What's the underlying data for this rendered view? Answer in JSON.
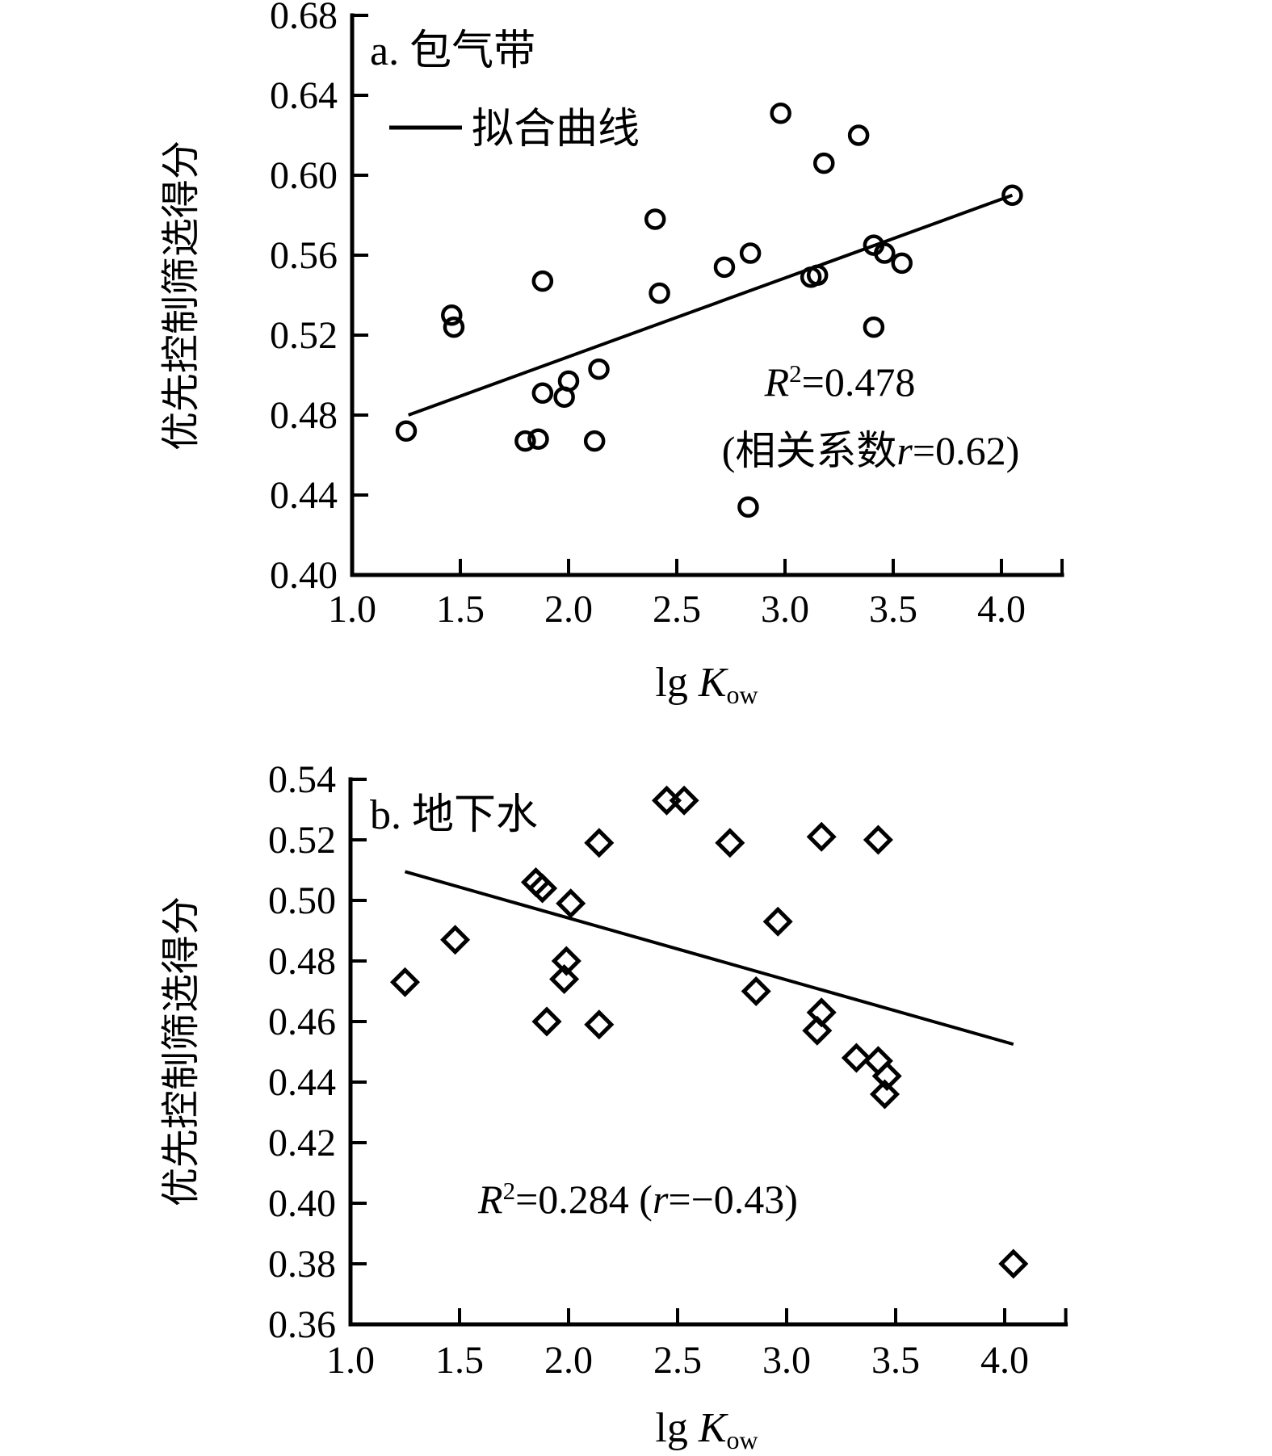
{
  "figure": {
    "background": "#ffffff",
    "ink_color": "#000000"
  },
  "chart_data": [
    {
      "type": "scatter",
      "panel": "a",
      "title": "a. 包气带",
      "legend": {
        "position": "top-left-inside",
        "line_label": "拟合曲线"
      },
      "marker": "circle",
      "ylabel": "优先控制筛选得分",
      "xlabel_segments": [
        {
          "t": "lg "
        },
        {
          "t": "K",
          "i": true
        },
        {
          "t": "ow",
          "sub": true
        }
      ],
      "xlim": [
        1.0,
        4.28
      ],
      "ylim": [
        0.4,
        0.68
      ],
      "grid": false,
      "xticks": [
        1.0,
        1.5,
        2.0,
        2.5,
        3.0,
        3.5,
        4.0
      ],
      "xtick_labels": [
        "1.0",
        "1.5",
        "2.0",
        "2.5",
        "3.0",
        "3.5",
        "4.0"
      ],
      "yticks": [
        0.68,
        0.64,
        0.6,
        0.56,
        0.52,
        0.48,
        0.44,
        0.4
      ],
      "ytick_labels": [
        "0.68",
        "0.64",
        "0.60",
        "0.56",
        "0.52",
        "0.48",
        "0.44",
        "0.40"
      ],
      "r_squared": 0.478,
      "r": 0.62,
      "annotations": [
        {
          "segments": [
            {
              "t": "R",
              "i": true
            },
            {
              "t": "2",
              "sup": true
            },
            {
              "t": "=0.478"
            }
          ]
        },
        {
          "segments": [
            {
              "t": "(相关系数"
            },
            {
              "t": "r",
              "i": true
            },
            {
              "t": "=0.62)"
            }
          ]
        }
      ],
      "fit_line": {
        "x1": 1.26,
        "y1": 0.48,
        "x2": 4.05,
        "y2": 0.59
      },
      "points": [
        [
          1.25,
          0.472
        ],
        [
          1.46,
          0.53
        ],
        [
          1.47,
          0.524
        ],
        [
          1.88,
          0.547
        ],
        [
          1.8,
          0.467
        ],
        [
          1.86,
          0.468
        ],
        [
          1.88,
          0.491
        ],
        [
          1.98,
          0.489
        ],
        [
          2.0,
          0.497
        ],
        [
          2.14,
          0.503
        ],
        [
          2.12,
          0.467
        ],
        [
          2.4,
          0.578
        ],
        [
          2.42,
          0.541
        ],
        [
          2.72,
          0.554
        ],
        [
          2.84,
          0.561
        ],
        [
          2.83,
          0.434
        ],
        [
          2.98,
          0.631
        ],
        [
          3.18,
          0.606
        ],
        [
          3.12,
          0.549
        ],
        [
          3.15,
          0.55
        ],
        [
          3.34,
          0.62
        ],
        [
          3.41,
          0.565
        ],
        [
          3.46,
          0.561
        ],
        [
          3.54,
          0.556
        ],
        [
          3.41,
          0.524
        ],
        [
          4.05,
          0.59
        ]
      ]
    },
    {
      "type": "scatter",
      "panel": "b",
      "title": "b. 地下水",
      "legend": null,
      "marker": "diamond",
      "ylabel": "优先控制筛选得分",
      "xlabel_segments": [
        {
          "t": "lg "
        },
        {
          "t": "K",
          "i": true
        },
        {
          "t": "ow",
          "sub": true
        }
      ],
      "xlim": [
        1.0,
        4.28
      ],
      "ylim": [
        0.36,
        0.54
      ],
      "grid": false,
      "xticks": [
        1.0,
        1.5,
        2.0,
        2.5,
        3.0,
        3.5,
        4.0
      ],
      "xtick_labels": [
        "1.0",
        "1.5",
        "2.0",
        "2.5",
        "3.0",
        "3.5",
        "4.0"
      ],
      "yticks": [
        0.54,
        0.52,
        0.5,
        0.48,
        0.46,
        0.44,
        0.42,
        0.4,
        0.38,
        0.36
      ],
      "ytick_labels": [
        "0.54",
        "0.52",
        "0.50",
        "0.48",
        "0.46",
        "0.44",
        "0.42",
        "0.40",
        "0.38",
        "0.36"
      ],
      "r_squared": 0.284,
      "r": -0.43,
      "annotations": [
        {
          "segments": [
            {
              "t": "R",
              "i": true
            },
            {
              "t": "2",
              "sup": true
            },
            {
              "t": "=0.284 ("
            },
            {
              "t": "r",
              "i": true
            },
            {
              "t": "=−0.43)"
            }
          ]
        }
      ],
      "fit_line": {
        "x1": 1.25,
        "y1": 0.5095,
        "x2": 4.04,
        "y2": 0.4525
      },
      "points": [
        [
          1.25,
          0.473
        ],
        [
          1.48,
          0.487
        ],
        [
          1.85,
          0.506
        ],
        [
          1.88,
          0.504
        ],
        [
          2.01,
          0.499
        ],
        [
          1.99,
          0.48
        ],
        [
          1.98,
          0.474
        ],
        [
          1.9,
          0.46
        ],
        [
          2.14,
          0.459
        ],
        [
          2.14,
          0.519
        ],
        [
          2.45,
          0.533
        ],
        [
          2.53,
          0.533
        ],
        [
          2.74,
          0.519
        ],
        [
          2.86,
          0.47
        ],
        [
          2.96,
          0.493
        ],
        [
          3.16,
          0.521
        ],
        [
          3.42,
          0.52
        ],
        [
          3.16,
          0.463
        ],
        [
          3.14,
          0.457
        ],
        [
          3.32,
          0.448
        ],
        [
          3.42,
          0.447
        ],
        [
          3.46,
          0.442
        ],
        [
          3.45,
          0.436
        ],
        [
          4.04,
          0.38
        ]
      ]
    }
  ]
}
